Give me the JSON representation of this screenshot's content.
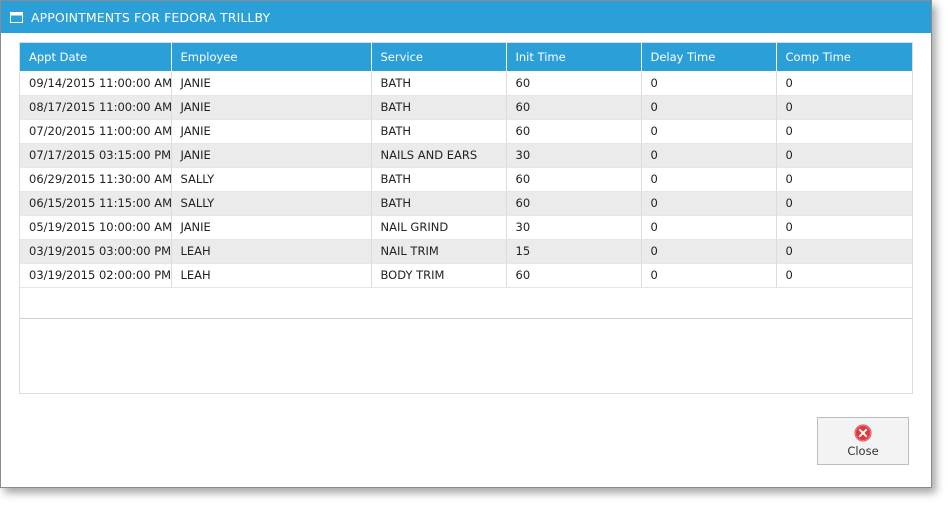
{
  "window": {
    "title": "APPOINTMENTS FOR FEDORA TRILLBY",
    "accent_color": "#2a9fd8"
  },
  "grid": {
    "columns": [
      "Appt Date",
      "Employee",
      "Service",
      "Init Time",
      "Delay Time",
      "Comp Time"
    ],
    "rows": [
      [
        "09/14/2015 11:00:00 AM",
        "JANIE",
        "BATH",
        "60",
        "0",
        "0"
      ],
      [
        "08/17/2015 11:00:00 AM",
        "JANIE",
        "BATH",
        "60",
        "0",
        "0"
      ],
      [
        "07/20/2015 11:00:00 AM",
        "JANIE",
        "BATH",
        "60",
        "0",
        "0"
      ],
      [
        "07/17/2015 03:15:00 PM",
        "JANIE",
        "NAILS AND EARS",
        "30",
        "0",
        "0"
      ],
      [
        "06/29/2015 11:30:00 AM",
        "SALLY",
        "BATH",
        "60",
        "0",
        "0"
      ],
      [
        "06/15/2015 11:15:00 AM",
        "SALLY",
        "BATH",
        "60",
        "0",
        "0"
      ],
      [
        "05/19/2015 10:00:00 AM",
        "JANIE",
        "NAIL GRIND",
        "30",
        "0",
        "0"
      ],
      [
        "03/19/2015 03:00:00 PM",
        "LEAH",
        "NAIL TRIM",
        "15",
        "0",
        "0"
      ],
      [
        "03/19/2015 02:00:00 PM",
        "LEAH",
        "BODY TRIM",
        "60",
        "0",
        "0"
      ]
    ]
  },
  "buttons": {
    "close_label": "Close",
    "close_icon": "close-circle-icon",
    "close_icon_color": "#e0383b"
  }
}
